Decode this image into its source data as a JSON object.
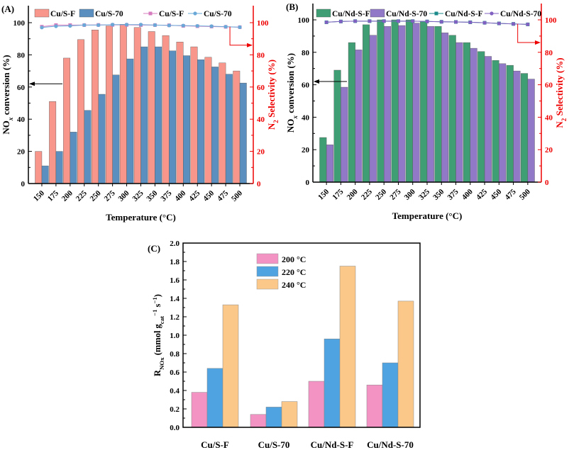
{
  "chart_data": [
    {
      "panel": "(A)",
      "type": "bar+line",
      "categories": [
        "150",
        "175",
        "200",
        "225",
        "250",
        "275",
        "300",
        "325",
        "350",
        "375",
        "400",
        "425",
        "450",
        "475",
        "500"
      ],
      "xlabel": "Temperature (°C)",
      "ylabel": "NOx conversion (%)",
      "ylabel_right": "N2 Selectivity (%)",
      "ylim": [
        0,
        110
      ],
      "ylim_right": [
        0,
        110
      ],
      "yticks": [
        0,
        20,
        40,
        60,
        80,
        100
      ],
      "bar_series": [
        {
          "name": "Cu/S-F",
          "color": "#f8968c",
          "values": [
            20,
            51,
            78,
            89.5,
            95.5,
            98,
            99,
            97,
            94.5,
            92,
            88,
            85,
            78.5,
            75,
            70
          ]
        },
        {
          "name": "Cu/S-70",
          "color": "#5b8fbf",
          "values": [
            11,
            20,
            32,
            45.5,
            55.5,
            67.5,
            77.5,
            85,
            85,
            82.5,
            79.5,
            77,
            72.5,
            68,
            62.5
          ]
        }
      ],
      "line_series": [
        {
          "name": "Cu/S-F",
          "color": "#d77bbf",
          "marker": "square",
          "values": [
            97.5,
            98.5,
            98.5,
            98.5,
            98.6,
            98.6,
            98.6,
            98.5,
            98.5,
            98.4,
            98,
            97.8,
            97.6,
            97.4,
            97.2
          ]
        },
        {
          "name": "Cu/S-70",
          "color": "#6aa8d8",
          "marker": "circle",
          "values": [
            97,
            97.8,
            98,
            98.5,
            98.5,
            98.8,
            98.8,
            98.8,
            98.5,
            98.3,
            98.2,
            98,
            97.8,
            97.5,
            97.2
          ]
        }
      ]
    },
    {
      "panel": "(B)",
      "type": "bar+line",
      "categories": [
        "150",
        "175",
        "200",
        "225",
        "250",
        "275",
        "300",
        "325",
        "350",
        "375",
        "400",
        "425",
        "450",
        "475",
        "500"
      ],
      "xlabel": "Temperature (°C)",
      "ylabel": "NOx conversion (%)",
      "ylabel_right": "N2 Selectivity (%)",
      "ylim": [
        0,
        110
      ],
      "ylim_right": [
        0,
        110
      ],
      "yticks": [
        0,
        20,
        40,
        60,
        80,
        100
      ],
      "bar_series": [
        {
          "name": "Cu/Nd-S-F",
          "color": "#3f9e74",
          "values": [
            27.5,
            69,
            86,
            97,
            100,
            100,
            100,
            99,
            96,
            90.5,
            86,
            80.5,
            75,
            72,
            67
          ]
        },
        {
          "name": "Cu/Nd-S-70",
          "color": "#9179c8",
          "values": [
            23,
            58.5,
            81.5,
            90.5,
            96,
            96.5,
            98,
            96,
            92,
            86,
            82.5,
            77.5,
            73,
            68.5,
            63.5
          ]
        }
      ],
      "line_series": [
        {
          "name": "Cu/Nd-S-F",
          "color": "#1a8a8a",
          "marker": "square",
          "values": [
            98.5,
            99,
            99.2,
            99.2,
            99.2,
            99.2,
            99.2,
            99,
            98.8,
            98.7,
            98.5,
            98.2,
            97.8,
            97.5,
            97.2
          ]
        },
        {
          "name": "Cu/Nd-S-70",
          "color": "#8060c0",
          "marker": "circle",
          "values": [
            98.5,
            99,
            99.2,
            99.2,
            99.2,
            99.2,
            99.2,
            99,
            98.8,
            98.7,
            98.5,
            98.2,
            97.8,
            97.5,
            97.2
          ]
        }
      ]
    },
    {
      "panel": "(C)",
      "type": "bar",
      "categories": [
        "Cu/S-F",
        "Cu/S-70",
        "Cu/Nd-S-F",
        "Cu/Nd-S-70"
      ],
      "ylabel": "RNOx (mmol gcat−1 s−1)",
      "ylim": [
        0,
        2.0
      ],
      "yticks": [
        "0.0",
        "0.2",
        "0.4",
        "0.6",
        "0.8",
        "1.0",
        "1.2",
        "1.4",
        "1.6",
        "1.8",
        "2.0"
      ],
      "series": [
        {
          "name": "200 °C",
          "color": "#f293c4",
          "values": [
            0.38,
            0.14,
            0.5,
            0.46
          ]
        },
        {
          "name": "220 °C",
          "color": "#4fa3e0",
          "values": [
            0.64,
            0.22,
            0.96,
            0.7
          ]
        },
        {
          "name": "240 °C",
          "color": "#fbc889",
          "values": [
            1.33,
            0.28,
            1.75,
            1.37
          ]
        }
      ]
    }
  ]
}
